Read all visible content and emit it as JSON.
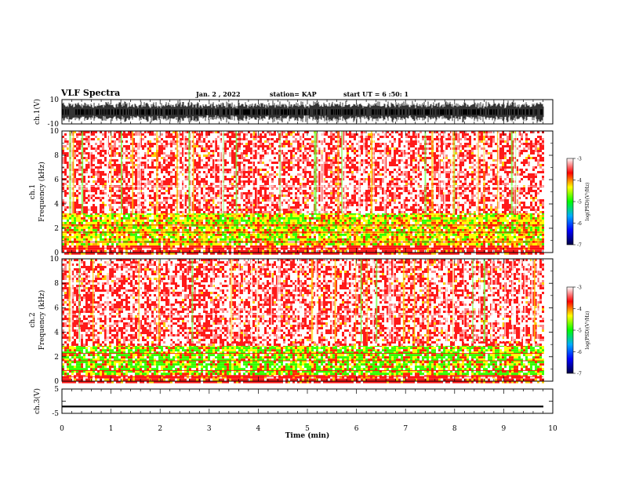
{
  "header": {
    "title": "VLF Spectra",
    "date": "Jan. 2 , 2022",
    "station": "station= KAP",
    "start": "start UT = 6 :50: 1"
  },
  "chart_data": [
    {
      "type": "line",
      "name": "ch1-waveform",
      "ylabel": "ch.1(V)",
      "ylim": [
        -10,
        10
      ],
      "yticks": [
        "10",
        "-10"
      ],
      "xlim": [
        0,
        10
      ],
      "x_extent": [
        0,
        9.82
      ],
      "description_values": "dense oscillating waveform spanning roughly -9 to 9 V"
    },
    {
      "type": "heatmap",
      "name": "ch1-spectrogram",
      "ylabel": "ch.1 Frequency (kHz)",
      "ylim": [
        0,
        10
      ],
      "yticks": [
        "0",
        "2",
        "4",
        "6",
        "8",
        "10"
      ],
      "xlim": [
        0,
        10
      ],
      "x_extent": [
        0,
        9.82
      ],
      "bands": [
        {
          "f_min": 0.0,
          "f_max": 0.6,
          "level": "red"
        },
        {
          "f_min": 0.6,
          "f_max": 3.3,
          "level": "yellow-green"
        },
        {
          "f_min": 3.3,
          "f_max": 10.0,
          "level": "red-white"
        }
      ]
    },
    {
      "type": "heatmap",
      "name": "ch2-spectrogram",
      "ylabel": "ch.2 Frequency (kHz)",
      "ylim": [
        0,
        10
      ],
      "yticks": [
        "0",
        "2",
        "4",
        "6",
        "8",
        "10"
      ],
      "xlim": [
        0,
        10
      ],
      "x_extent": [
        0,
        9.82
      ],
      "bands": [
        {
          "f_min": 0.0,
          "f_max": 0.6,
          "level": "red"
        },
        {
          "f_min": 0.6,
          "f_max": 3.0,
          "level": "green-yellow"
        },
        {
          "f_min": 3.0,
          "f_max": 10.0,
          "level": "red-white"
        }
      ]
    },
    {
      "type": "line",
      "name": "ch3-waveform",
      "ylabel": "ch.3(V)",
      "ylim": [
        -5,
        5
      ],
      "yticks": [
        "5",
        "-5"
      ],
      "xlim": [
        0,
        10
      ],
      "x_extent": [
        0,
        9.82
      ],
      "level": -2.2
    }
  ],
  "xaxis": {
    "label": "Time (min)",
    "ticks": [
      "0",
      "1",
      "2",
      "3",
      "4",
      "5",
      "6",
      "7",
      "8",
      "9",
      "10"
    ]
  },
  "colorbar": {
    "label": "log(PSD)(V²/Hz)",
    "ticks": [
      "-3",
      "-4",
      "-5",
      "-6",
      "-7"
    ],
    "range": [
      -7,
      -3
    ],
    "colors": [
      "#ffffff",
      "#ff0000",
      "#ffff00",
      "#00ff00",
      "#00aaff",
      "#0000ff",
      "#000044"
    ]
  }
}
